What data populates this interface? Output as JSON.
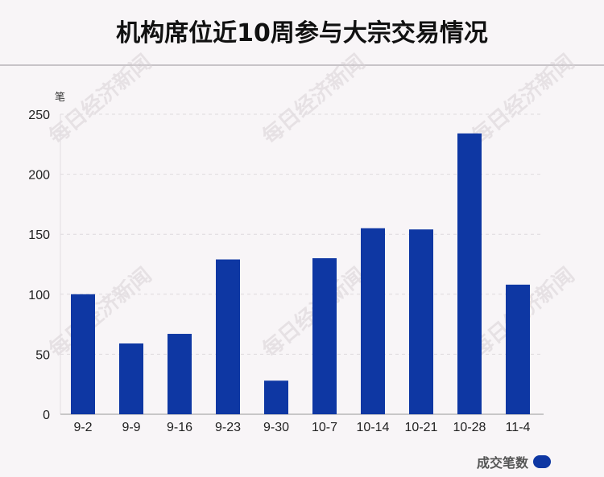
{
  "title": "机构席位近10周参与大宗交易情况",
  "colors": {
    "bar": "#0e37a3",
    "grid": "#dedade",
    "axis": "#999999"
  },
  "chart_data": {
    "type": "bar",
    "title": "机构席位近10周参与大宗交易情况",
    "y_unit": "笔",
    "categories": [
      "9-2",
      "9-9",
      "9-16",
      "9-23",
      "9-30",
      "10-7",
      "10-14",
      "10-21",
      "10-28",
      "11-4"
    ],
    "series": [
      {
        "name": "成交笔数",
        "values": [
          100,
          59,
          67,
          129,
          28,
          130,
          155,
          154,
          234,
          108
        ]
      }
    ],
    "ylim": [
      0,
      250
    ],
    "yticks": [
      0,
      50,
      100,
      150,
      200,
      250
    ],
    "grid": true,
    "legend": "bottom-right"
  },
  "watermark": "每日经济新闻"
}
